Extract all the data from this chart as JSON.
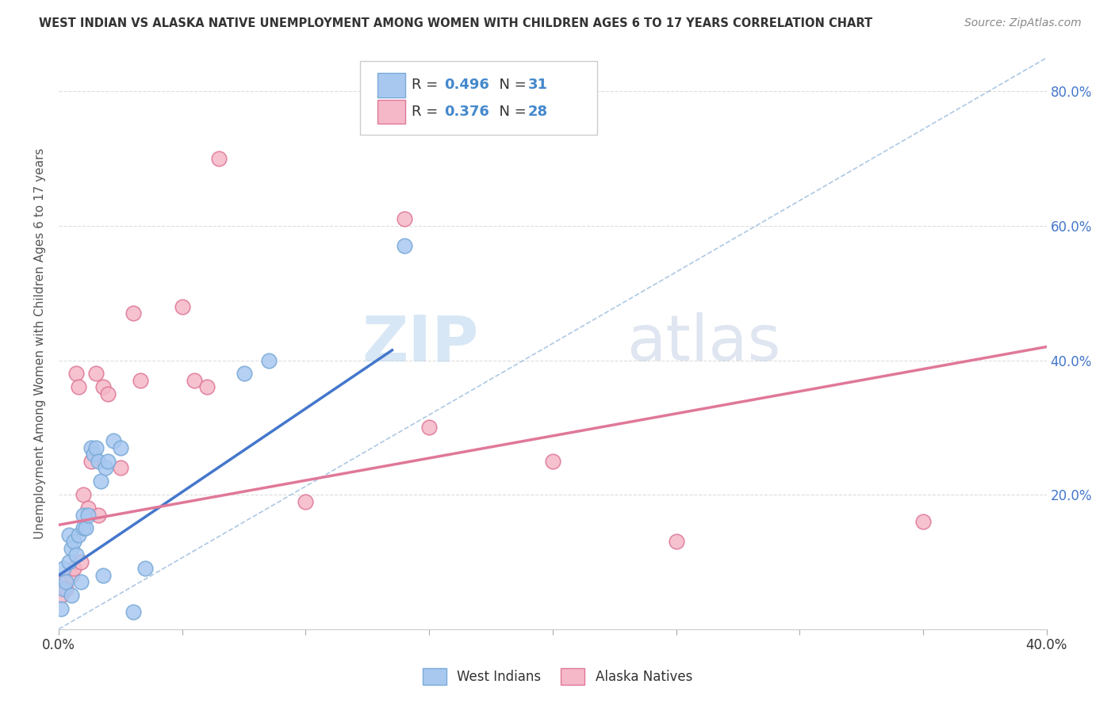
{
  "title": "WEST INDIAN VS ALASKA NATIVE UNEMPLOYMENT AMONG WOMEN WITH CHILDREN AGES 6 TO 17 YEARS CORRELATION CHART",
  "source": "Source: ZipAtlas.com",
  "ylabel": "Unemployment Among Women with Children Ages 6 to 17 years",
  "xlim": [
    0,
    0.4
  ],
  "ylim": [
    0,
    0.85
  ],
  "west_indians_color": "#a8c8f0",
  "west_indians_edge": "#7aaad8",
  "alaska_natives_color": "#f5b8c8",
  "alaska_natives_edge": "#e07898",
  "blue_line_color": "#4477cc",
  "pink_line_color": "#e07898",
  "ref_line_color": "#99bbdd",
  "grid_color": "#dddddd",
  "background_color": "#ffffff",
  "R_west": 0.496,
  "N_west": 31,
  "R_alaska": 0.376,
  "N_alaska": 28,
  "blue_line_x0": 0.0,
  "blue_line_y0": 0.08,
  "blue_line_x1": 0.135,
  "blue_line_y1": 0.415,
  "pink_line_x0": 0.0,
  "pink_line_x1": 0.4,
  "pink_line_y0": 0.155,
  "pink_line_y1": 0.42,
  "west_indians_x": [
    0.001,
    0.002,
    0.002,
    0.003,
    0.004,
    0.004,
    0.005,
    0.005,
    0.006,
    0.007,
    0.008,
    0.009,
    0.01,
    0.01,
    0.011,
    0.012,
    0.013,
    0.014,
    0.015,
    0.016,
    0.017,
    0.018,
    0.019,
    0.02,
    0.022,
    0.025,
    0.03,
    0.035,
    0.075,
    0.085,
    0.14
  ],
  "west_indians_y": [
    0.03,
    0.06,
    0.09,
    0.07,
    0.1,
    0.14,
    0.05,
    0.12,
    0.13,
    0.11,
    0.14,
    0.07,
    0.15,
    0.17,
    0.15,
    0.17,
    0.27,
    0.26,
    0.27,
    0.25,
    0.22,
    0.08,
    0.24,
    0.25,
    0.28,
    0.27,
    0.025,
    0.09,
    0.38,
    0.4,
    0.57
  ],
  "alaska_natives_x": [
    0.001,
    0.002,
    0.003,
    0.005,
    0.006,
    0.007,
    0.008,
    0.009,
    0.01,
    0.012,
    0.013,
    0.015,
    0.016,
    0.018,
    0.02,
    0.025,
    0.03,
    0.033,
    0.05,
    0.055,
    0.06,
    0.065,
    0.1,
    0.14,
    0.15,
    0.2,
    0.25,
    0.35
  ],
  "alaska_natives_y": [
    0.05,
    0.07,
    0.06,
    0.08,
    0.09,
    0.38,
    0.36,
    0.1,
    0.2,
    0.18,
    0.25,
    0.38,
    0.17,
    0.36,
    0.35,
    0.24,
    0.47,
    0.37,
    0.48,
    0.37,
    0.36,
    0.7,
    0.19,
    0.61,
    0.3,
    0.25,
    0.13,
    0.16
  ]
}
